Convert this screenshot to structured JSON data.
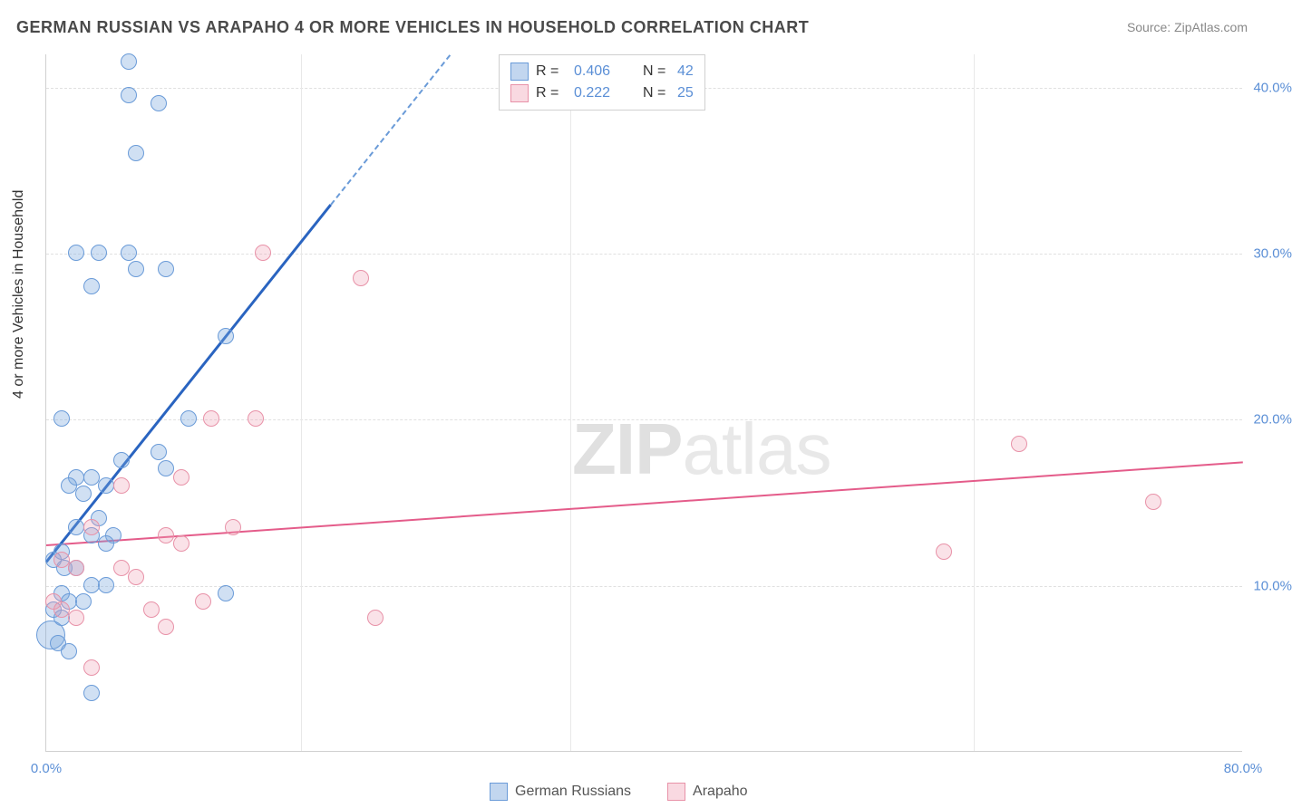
{
  "title": "GERMAN RUSSIAN VS ARAPAHO 4 OR MORE VEHICLES IN HOUSEHOLD CORRELATION CHART",
  "source_label": "Source: ZipAtlas.com",
  "ylabel": "4 or more Vehicles in Household",
  "watermark_a": "ZIP",
  "watermark_b": "atlas",
  "chart": {
    "type": "scatter",
    "xlim": [
      0,
      80
    ],
    "ylim": [
      0,
      42
    ],
    "background_color": "#ffffff",
    "grid_color": "#e0e0e0",
    "grid_dashed": true,
    "axis_color": "#d0d0d0",
    "tick_label_color": "#5b8fd6",
    "tick_label_fontsize": 15,
    "xticks": [
      {
        "v": 0,
        "label": "0.0%"
      },
      {
        "v": 80,
        "label": "80.0%"
      }
    ],
    "xgrid_extra": [
      17,
      35,
      62
    ],
    "yticks": [
      {
        "v": 10,
        "label": "10.0%"
      },
      {
        "v": 20,
        "label": "20.0%"
      },
      {
        "v": 30,
        "label": "30.0%"
      },
      {
        "v": 40,
        "label": "40.0%"
      }
    ],
    "series": [
      {
        "name": "German Russians",
        "color_fill": "rgba(120,165,220,0.35)",
        "color_stroke": "#6a9bd8",
        "marker_radius": 9,
        "trend": {
          "x1": 0,
          "y1": 11.5,
          "x2": 19,
          "y2": 33,
          "solid_until_x": 19,
          "color": "#2a64c0",
          "width": 3
        },
        "R": 0.406,
        "N": 42,
        "points": [
          {
            "x": 5.5,
            "y": 41.5
          },
          {
            "x": 5.5,
            "y": 39.5
          },
          {
            "x": 7.5,
            "y": 39.0
          },
          {
            "x": 6.0,
            "y": 36.0
          },
          {
            "x": 2.0,
            "y": 30.0
          },
          {
            "x": 3.5,
            "y": 30.0
          },
          {
            "x": 5.5,
            "y": 30.0
          },
          {
            "x": 6.0,
            "y": 29.0
          },
          {
            "x": 3.0,
            "y": 28.0
          },
          {
            "x": 12.0,
            "y": 25.0
          },
          {
            "x": 9.5,
            "y": 20.0
          },
          {
            "x": 1.0,
            "y": 20.0
          },
          {
            "x": 5.0,
            "y": 17.5
          },
          {
            "x": 7.5,
            "y": 18.0
          },
          {
            "x": 8.0,
            "y": 17.0
          },
          {
            "x": 2.0,
            "y": 16.5
          },
          {
            "x": 3.0,
            "y": 16.5
          },
          {
            "x": 1.5,
            "y": 16.0
          },
          {
            "x": 4.0,
            "y": 16.0
          },
          {
            "x": 2.5,
            "y": 15.5
          },
          {
            "x": 2.0,
            "y": 13.5
          },
          {
            "x": 3.0,
            "y": 13.0
          },
          {
            "x": 4.5,
            "y": 13.0
          },
          {
            "x": 4.0,
            "y": 12.5
          },
          {
            "x": 1.0,
            "y": 12.0
          },
          {
            "x": 0.5,
            "y": 11.5
          },
          {
            "x": 1.2,
            "y": 11.0
          },
          {
            "x": 2.0,
            "y": 11.0
          },
          {
            "x": 3.0,
            "y": 10.0
          },
          {
            "x": 4.0,
            "y": 10.0
          },
          {
            "x": 12.0,
            "y": 9.5
          },
          {
            "x": 1.0,
            "y": 9.5
          },
          {
            "x": 1.5,
            "y": 9.0
          },
          {
            "x": 2.5,
            "y": 9.0
          },
          {
            "x": 0.5,
            "y": 8.5
          },
          {
            "x": 1.0,
            "y": 8.0
          },
          {
            "x": 0.3,
            "y": 7.0,
            "r": 16
          },
          {
            "x": 0.8,
            "y": 6.5
          },
          {
            "x": 1.5,
            "y": 6.0
          },
          {
            "x": 3.0,
            "y": 3.5
          },
          {
            "x": 8.0,
            "y": 29.0
          },
          {
            "x": 3.5,
            "y": 14.0
          }
        ]
      },
      {
        "name": "Arapaho",
        "color_fill": "rgba(240,160,180,0.30)",
        "color_stroke": "#e892a8",
        "marker_radius": 9,
        "trend": {
          "x1": 0,
          "y1": 12.5,
          "x2": 80,
          "y2": 17.5,
          "color": "#e45c8a",
          "width": 2.5
        },
        "R": 0.222,
        "N": 25,
        "points": [
          {
            "x": 14.5,
            "y": 30.0
          },
          {
            "x": 21.0,
            "y": 28.5
          },
          {
            "x": 11.0,
            "y": 20.0
          },
          {
            "x": 14.0,
            "y": 20.0
          },
          {
            "x": 65.0,
            "y": 18.5
          },
          {
            "x": 9.0,
            "y": 16.5
          },
          {
            "x": 5.0,
            "y": 16.0
          },
          {
            "x": 74.0,
            "y": 15.0
          },
          {
            "x": 3.0,
            "y": 13.5
          },
          {
            "x": 12.5,
            "y": 13.5
          },
          {
            "x": 8.0,
            "y": 13.0
          },
          {
            "x": 9.0,
            "y": 12.5
          },
          {
            "x": 60.0,
            "y": 12.0
          },
          {
            "x": 1.0,
            "y": 11.5
          },
          {
            "x": 2.0,
            "y": 11.0
          },
          {
            "x": 5.0,
            "y": 11.0
          },
          {
            "x": 6.0,
            "y": 10.5
          },
          {
            "x": 0.5,
            "y": 9.0
          },
          {
            "x": 7.0,
            "y": 8.5
          },
          {
            "x": 10.5,
            "y": 9.0
          },
          {
            "x": 1.0,
            "y": 8.5
          },
          {
            "x": 2.0,
            "y": 8.0
          },
          {
            "x": 8.0,
            "y": 7.5
          },
          {
            "x": 22.0,
            "y": 8.0
          },
          {
            "x": 3.0,
            "y": 5.0
          }
        ]
      }
    ]
  },
  "legend_top": {
    "rows": [
      {
        "swatch": "blue",
        "R": "0.406",
        "N": "42"
      },
      {
        "swatch": "pink",
        "R": "0.222",
        "N": "25"
      }
    ]
  },
  "legend_bottom": {
    "items": [
      {
        "swatch": "blue",
        "label": "German Russians"
      },
      {
        "swatch": "pink",
        "label": "Arapaho"
      }
    ]
  }
}
